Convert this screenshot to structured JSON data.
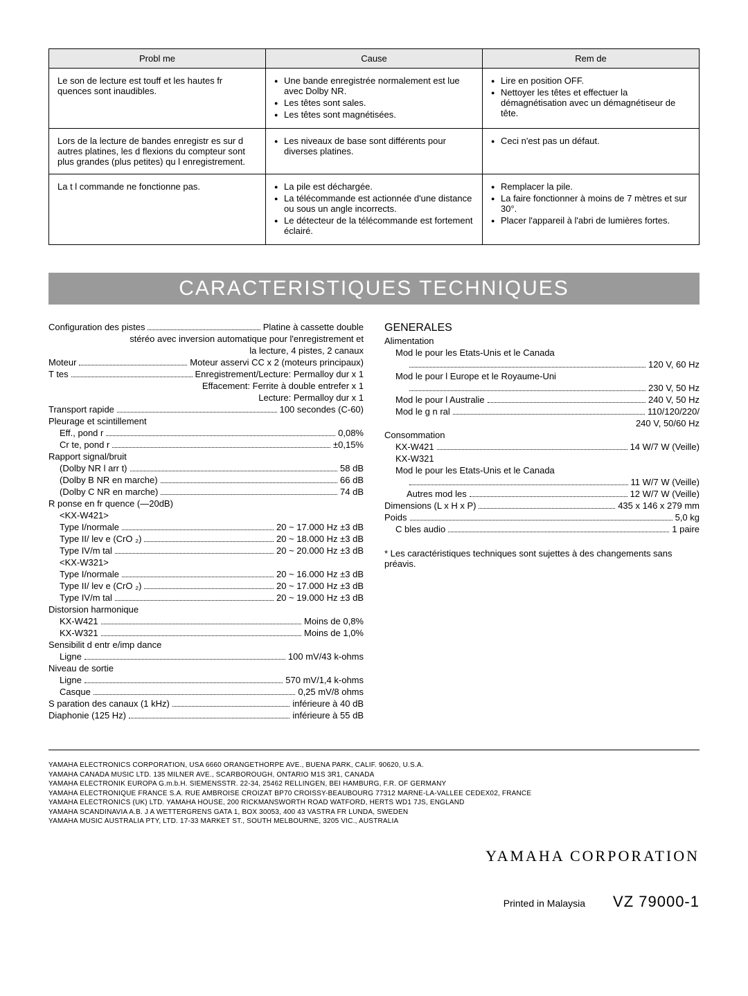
{
  "table": {
    "headers": [
      "Probl me",
      "Cause",
      "Rem de"
    ],
    "rows": [
      {
        "problem": "Le son de lecture est touff et les hautes fr quences sont inaudibles.",
        "causes": [
          "Une bande enregistrée normalement est lue avec Dolby NR.",
          "Les têtes sont sales.",
          "Les têtes sont magnétisées."
        ],
        "remedies": [
          "Lire en position OFF.",
          "Nettoyer les têtes et effectuer la démagnétisation avec un démagnétiseur de tête."
        ]
      },
      {
        "problem": "Lors de la lecture de bandes enregistr es sur d autres platines, les d flexions du compteur sont plus grandes (plus petites) qu l enregistrement.",
        "causes": [
          "Les niveaux de base sont différents pour diverses platines."
        ],
        "remedies": [
          "Ceci n'est pas un défaut."
        ]
      },
      {
        "problem": "La t l commande ne fonctionne pas.",
        "causes": [
          "La pile est déchargée.",
          "La télécommande est actionnée d'une distance ou sous un angle incorrects.",
          "Le détecteur de la télécommande est fortement éclairé."
        ],
        "remedies": [
          "Remplacer la pile.",
          "La faire fonctionner à moins de 7 mètres et sur 30°.",
          "Placer l'appareil à l'abri de lumières fortes."
        ]
      }
    ]
  },
  "section_title": "CARACTERISTIQUES TECHNIQUES",
  "left": {
    "config": {
      "label": "Configuration des pistes",
      "value": "Platine à cassette double",
      "suffix1": "stéréo avec inversion automatique pour l'enregistrement et",
      "suffix2": "la lecture, 4 pistes, 2 canaux"
    },
    "moteur": {
      "label": "Moteur",
      "value": "Moteur asservi CC x 2 (moteurs principaux)"
    },
    "tetes": {
      "label": "T tes",
      "value": "Enregistrement/Lecture: Permalloy dur x 1",
      "line2": "Effacement: Ferrite à double entrefer x 1",
      "line3": "Lecture: Permalloy dur x 1"
    },
    "transport": {
      "label": "Transport rapide",
      "value": "100 secondes (C-60)"
    },
    "pleurage_hdr": "Pleurage et scintillement",
    "pleurage1": {
      "label": "Eff., pond r",
      "value": "0,08%"
    },
    "pleurage2": {
      "label": "Cr te, pond r",
      "value": "±0,15%"
    },
    "rapport_hdr": "Rapport signal/bruit",
    "rapport1": {
      "label": "(Dolby NR   l arr t)",
      "value": "58 dB"
    },
    "rapport2": {
      "label": "(Dolby B NR en marche)",
      "value": "66 dB"
    },
    "rapport3": {
      "label": "(Dolby C NR en marche)",
      "value": "74 dB"
    },
    "reponse_hdr": "R ponse en fr quence (—20dB)",
    "kx421_hdr": "<KX-W421>",
    "kx421_1": {
      "label": "Type I/normale",
      "value": "20 ~ 17.000 Hz ±3 dB"
    },
    "kx421_2": {
      "label": "Type II/ lev e (CrO  ₂)",
      "value": "20 ~ 18.000 Hz ±3 dB"
    },
    "kx421_3": {
      "label": "Type IV/m tal",
      "value": "20 ~ 20.000 Hz ±3 dB"
    },
    "kx321_hdr": "<KX-W321>",
    "kx321_1": {
      "label": "Type I/normale",
      "value": "20 ~ 16.000 Hz ±3 dB"
    },
    "kx321_2": {
      "label": "Type II/ lev e (CrO  ₂)",
      "value": "20 ~ 17.000 Hz ±3 dB"
    },
    "kx321_3": {
      "label": "Type IV/m tal",
      "value": "20 ~ 19.000 Hz ±3 dB"
    },
    "dist_hdr": "Distorsion harmonique",
    "dist1": {
      "label": "KX-W421",
      "value": "Moins de 0,8%"
    },
    "dist2": {
      "label": "KX-W321",
      "value": "Moins de 1,0%"
    },
    "sens_hdr": "Sensibilit  d entr e/imp dance",
    "sens1": {
      "label": "Ligne",
      "value": "100 mV/43 k-ohms"
    },
    "niv_hdr": "Niveau de sortie",
    "niv1": {
      "label": "Ligne",
      "value": "570 mV/1,4 k-ohms"
    },
    "niv2": {
      "label": "Casque",
      "value": "0,25 mV/8 ohms"
    },
    "sep": {
      "label": "S paration des canaux (1 kHz)",
      "value": "inférieure à 40 dB"
    },
    "dia": {
      "label": "Diaphonie (125 Hz)",
      "value": "inférieure à 55 dB"
    }
  },
  "right": {
    "gen_hdr": "GENERALES",
    "alim_hdr": "Alimentation",
    "alim1_lbl": "Mod le pour les Etats-Unis et le Canada",
    "alim1": {
      "label": "",
      "value": "120 V, 60 Hz"
    },
    "alim2_lbl": "Mod le pour l Europe et le Royaume-Uni",
    "alim2": {
      "label": "",
      "value": "230 V, 50 Hz"
    },
    "alim3": {
      "label": "Mod le pour l Australie",
      "value": "240 V, 50 Hz"
    },
    "alim4": {
      "label": "Mod le g n ral",
      "value": "110/120/220/"
    },
    "alim4b": "240 V, 50/60 Hz",
    "cons_hdr": "Consommation",
    "cons1": {
      "label": "KX-W421",
      "value": "14 W/7 W (Veille)"
    },
    "cons2_hdr": "KX-W321",
    "cons2a_lbl": "Mod le pour les Etats-Unis et le Canada",
    "cons2a": {
      "label": "",
      "value": "11 W/7 W (Veille)"
    },
    "cons2b": {
      "label": "Autres mod les",
      "value": "12 W/7 W (Veille)"
    },
    "dim": {
      "label": "Dimensions (L x H x P)",
      "value": "435 x 146 x 279 mm"
    },
    "poids": {
      "label": "Poids",
      "value": "5,0 kg"
    },
    "cables": {
      "label": "C bles audio",
      "value": "1  paire"
    },
    "note": "* Les caractéristiques techniques sont sujettes à des changements sans préavis."
  },
  "addresses": [
    "YAMAHA ELECTRONICS CORPORATION, USA    6660 ORANGETHORPE AVE., BUENA PARK, CALIF. 90620, U.S.A.",
    "YAMAHA CANADA MUSIC LTD.    135 MILNER AVE., SCARBOROUGH, ONTARIO M1S 3R1, CANADA",
    "YAMAHA ELECTRONIK EUROPA G.m.b.H.    SIEMENSSTR. 22-34, 25462 RELLINGEN, BEI HAMBURG, F.R. OF GERMANY",
    "YAMAHA ELECTRONIQUE FRANCE S.A.    RUE AMBROISE CROIZAT BP70 CROISSY-BEAUBOURG 77312 MARNE-LA-VALLEE CEDEX02, FRANCE",
    "YAMAHA ELECTRONICS (UK) LTD.    YAMAHA HOUSE, 200 RICKMANSWORTH ROAD WATFORD, HERTS WD1 7JS, ENGLAND",
    "YAMAHA SCANDINAVIA A.B.    J A WETTERGRENS GATA 1, BOX 30053, 400 43 VASTRA FR LUNDA, SWEDEN",
    "YAMAHA MUSIC AUSTRALIA PTY, LTD.    17-33 MARKET ST., SOUTH MELBOURNE, 3205 VIC., AUSTRALIA"
  ],
  "footer": {
    "corp": "YAMAHA CORPORATION",
    "printed": "Printed in Malaysia",
    "code": "VZ 79000-1"
  }
}
